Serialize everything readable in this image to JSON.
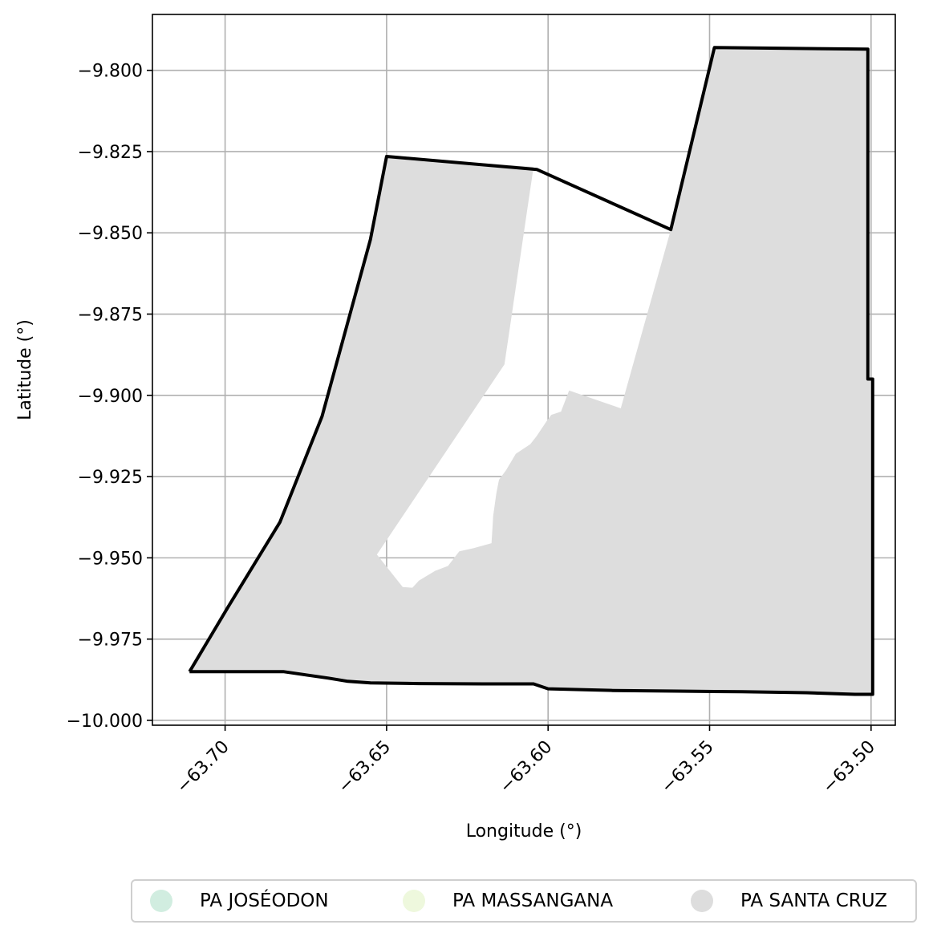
{
  "chart_data": {
    "type": "map",
    "xlabel": "Longitude (°)",
    "ylabel": "Latitude (°)",
    "xlim": [
      -63.7225,
      -63.4925
    ],
    "ylim": [
      -10.0015,
      -9.7828
    ],
    "x_ticks": [
      -63.7,
      -63.65,
      -63.6,
      -63.55,
      -63.5
    ],
    "x_tick_labels": [
      "−63.70",
      "−63.65",
      "−63.60",
      "−63.55",
      "−63.50"
    ],
    "y_ticks": [
      -9.8,
      -9.825,
      -9.85,
      -9.875,
      -9.9,
      -9.925,
      -9.95,
      -9.975,
      -10.0
    ],
    "y_tick_labels": [
      "−9.800",
      "−9.825",
      "−9.850",
      "−9.875",
      "−9.900",
      "−9.925",
      "−9.950",
      "−9.975",
      "−10.000"
    ],
    "grid": true,
    "legend_position": "bottom",
    "legend": [
      {
        "label": "PA JOSÉODON",
        "color": "#d1ede0"
      },
      {
        "label": "PA MASSANGANA",
        "color": "#eef8dd"
      },
      {
        "label": "PA SANTA CRUZ",
        "color": "#dddddd"
      }
    ],
    "fill_color": "#dddddd",
    "outline_color": "#000000",
    "filled_area": [
      [
        -63.711,
        -9.985
      ],
      [
        -63.699,
        -9.965
      ],
      [
        -63.683,
        -9.939
      ],
      [
        -63.67,
        -9.9065
      ],
      [
        -63.655,
        -9.852
      ],
      [
        -63.65,
        -9.8265
      ],
      [
        -63.6045,
        -9.8297
      ],
      [
        -63.6135,
        -9.8905
      ],
      [
        -63.653,
        -9.949
      ],
      [
        -63.645,
        -9.959
      ],
      [
        -63.642,
        -9.9592
      ],
      [
        -63.64,
        -9.957
      ],
      [
        -63.635,
        -9.954
      ],
      [
        -63.631,
        -9.9525
      ],
      [
        -63.6275,
        -9.948
      ],
      [
        -63.623,
        -9.947
      ],
      [
        -63.6175,
        -9.9455
      ],
      [
        -63.617,
        -9.937
      ],
      [
        -63.616,
        -9.93
      ],
      [
        -63.6152,
        -9.926
      ],
      [
        -63.613,
        -9.923
      ],
      [
        -63.61,
        -9.918
      ],
      [
        -63.6055,
        -9.915
      ],
      [
        -63.6035,
        -9.9125
      ],
      [
        -63.6005,
        -9.908
      ],
      [
        -63.599,
        -9.906
      ],
      [
        -63.596,
        -9.905
      ],
      [
        -63.5935,
        -9.8985
      ],
      [
        -63.5775,
        -9.904
      ],
      [
        -63.562,
        -9.849
      ],
      [
        -63.5485,
        -9.793
      ],
      [
        -63.501,
        -9.7935
      ],
      [
        -63.501,
        -9.895
      ],
      [
        -63.4995,
        -9.895
      ],
      [
        -63.4995,
        -9.992
      ],
      [
        -63.505,
        -9.992
      ],
      [
        -63.52,
        -9.9915
      ],
      [
        -63.54,
        -9.9912
      ],
      [
        -63.56,
        -9.991
      ],
      [
        -63.58,
        -9.9908
      ],
      [
        -63.6,
        -9.9903
      ],
      [
        -63.6045,
        -9.9888
      ],
      [
        -63.62,
        -9.9888
      ],
      [
        -63.64,
        -9.9887
      ],
      [
        -63.655,
        -9.9885
      ],
      [
        -63.662,
        -9.988
      ],
      [
        -63.668,
        -9.987
      ],
      [
        -63.682,
        -9.985
      ],
      [
        -63.711,
        -9.985
      ]
    ],
    "boundary": [
      [
        -63.711,
        -9.985
      ],
      [
        -63.699,
        -9.965
      ],
      [
        -63.683,
        -9.939
      ],
      [
        -63.67,
        -9.9065
      ],
      [
        -63.655,
        -9.852
      ],
      [
        -63.65,
        -9.8265
      ],
      [
        -63.6035,
        -9.8305
      ],
      [
        -63.562,
        -9.849
      ],
      [
        -63.5485,
        -9.793
      ],
      [
        -63.501,
        -9.7935
      ],
      [
        -63.501,
        -9.895
      ],
      [
        -63.4995,
        -9.895
      ],
      [
        -63.4995,
        -9.992
      ],
      [
        -63.505,
        -9.992
      ],
      [
        -63.52,
        -9.9915
      ],
      [
        -63.54,
        -9.9912
      ],
      [
        -63.56,
        -9.991
      ],
      [
        -63.58,
        -9.9908
      ],
      [
        -63.6,
        -9.9903
      ],
      [
        -63.6045,
        -9.9888
      ],
      [
        -63.62,
        -9.9888
      ],
      [
        -63.64,
        -9.9887
      ],
      [
        -63.655,
        -9.9885
      ],
      [
        -63.662,
        -9.988
      ],
      [
        -63.668,
        -9.987
      ],
      [
        -63.682,
        -9.985
      ],
      [
        -63.711,
        -9.985
      ]
    ]
  }
}
